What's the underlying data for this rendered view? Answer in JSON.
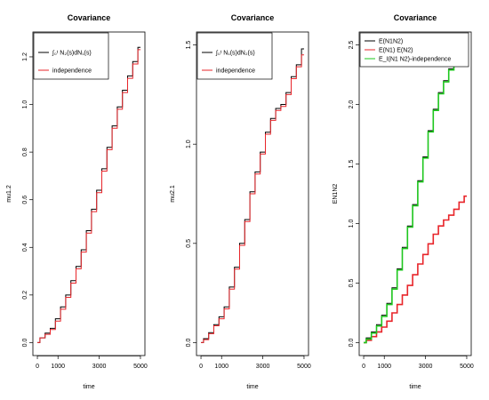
{
  "chart_data": [
    {
      "type": "line",
      "title": "Covariance",
      "xlabel": "time",
      "ylabel": "mu1.2",
      "xlim": [
        0,
        5000
      ],
      "ylim": [
        0,
        1.25
      ],
      "xticks": [
        0,
        1000,
        3000,
        5000
      ],
      "yticks": [
        0.0,
        0.2,
        0.4,
        0.6,
        0.8,
        1.0,
        1.2
      ],
      "ytick_labels": [
        "0.0",
        "0.2",
        "0.4",
        "0.6",
        "0.8",
        "1.0",
        "1.2"
      ],
      "legend": "top-left",
      "series": [
        {
          "name": "∫₀ᵗ N₂(s)dN₁(s)",
          "color": "#000000",
          "x": [
            0,
            250,
            500,
            750,
            1000,
            1250,
            1500,
            1750,
            2000,
            2250,
            2500,
            2750,
            3000,
            3250,
            3500,
            3750,
            4000,
            4250,
            4500,
            4750,
            5000
          ],
          "y": [
            0.0,
            0.02,
            0.04,
            0.06,
            0.1,
            0.15,
            0.2,
            0.26,
            0.32,
            0.39,
            0.47,
            0.56,
            0.64,
            0.73,
            0.82,
            0.91,
            0.99,
            1.06,
            1.12,
            1.18,
            1.24
          ]
        },
        {
          "name": "independence",
          "color": "#e8252a",
          "x": [
            0,
            250,
            500,
            750,
            1000,
            1250,
            1500,
            1750,
            2000,
            2250,
            2500,
            2750,
            3000,
            3250,
            3500,
            3750,
            4000,
            4250,
            4500,
            4750,
            5000
          ],
          "y": [
            0.0,
            0.02,
            0.035,
            0.055,
            0.09,
            0.14,
            0.19,
            0.25,
            0.31,
            0.38,
            0.46,
            0.55,
            0.63,
            0.72,
            0.81,
            0.9,
            0.98,
            1.05,
            1.11,
            1.17,
            1.23
          ]
        }
      ]
    },
    {
      "type": "line",
      "title": "Covariance",
      "xlabel": "time",
      "ylabel": "mu2.1",
      "xlim": [
        0,
        5000
      ],
      "ylim": [
        0,
        1.5
      ],
      "xticks": [
        0,
        1000,
        3000,
        5000
      ],
      "yticks": [
        0.0,
        0.5,
        1.0,
        1.5
      ],
      "ytick_labels": [
        "0.0",
        "0.5",
        "1.0",
        "1.5"
      ],
      "legend": "top-left",
      "series": [
        {
          "name": "∫₀ᵗ N₁(s)dN₂(s)",
          "color": "#000000",
          "x": [
            0,
            250,
            500,
            750,
            1000,
            1250,
            1500,
            1750,
            2000,
            2250,
            2500,
            2750,
            3000,
            3250,
            3500,
            3750,
            4000,
            4250,
            4500,
            4750,
            5000
          ],
          "y": [
            0.0,
            0.02,
            0.05,
            0.09,
            0.13,
            0.18,
            0.28,
            0.38,
            0.5,
            0.62,
            0.76,
            0.86,
            0.96,
            1.06,
            1.13,
            1.18,
            1.2,
            1.26,
            1.34,
            1.4,
            1.48
          ]
        },
        {
          "name": "independence",
          "color": "#e8252a",
          "x": [
            0,
            250,
            500,
            750,
            1000,
            1250,
            1500,
            1750,
            2000,
            2250,
            2500,
            2750,
            3000,
            3250,
            3500,
            3750,
            4000,
            4250,
            4500,
            4750,
            5000
          ],
          "y": [
            0.0,
            0.015,
            0.045,
            0.085,
            0.12,
            0.17,
            0.27,
            0.37,
            0.49,
            0.61,
            0.75,
            0.85,
            0.95,
            1.05,
            1.12,
            1.17,
            1.19,
            1.25,
            1.33,
            1.39,
            1.45
          ]
        }
      ]
    },
    {
      "type": "line",
      "title": "Covariance",
      "xlabel": "time",
      "ylabel": "EN1N2",
      "xlim": [
        0,
        5000
      ],
      "ylim": [
        0,
        2.5
      ],
      "xticks": [
        0,
        1000,
        3000,
        5000
      ],
      "yticks": [
        0.0,
        0.5,
        1.0,
        1.5,
        2.0,
        2.5
      ],
      "ytick_labels": [
        "0.0",
        "0.5",
        "1.0",
        "1.5",
        "2.0",
        "2.5"
      ],
      "legend": "top-left",
      "series": [
        {
          "name": "E(N1N2)",
          "color": "#000000",
          "x": [
            0,
            250,
            500,
            750,
            1000,
            1250,
            1500,
            1750,
            2000,
            2250,
            2500,
            2750,
            3000,
            3250,
            3500,
            3750,
            4000,
            4250,
            4500,
            4750
          ],
          "y": [
            0.0,
            0.04,
            0.09,
            0.15,
            0.23,
            0.33,
            0.46,
            0.62,
            0.8,
            0.98,
            1.16,
            1.36,
            1.56,
            1.78,
            1.96,
            2.1,
            2.2,
            2.3,
            2.42,
            2.53
          ]
        },
        {
          "name": "E(N1) E(N2)",
          "color": "#e8252a",
          "x": [
            0,
            250,
            500,
            750,
            1000,
            1250,
            1500,
            1750,
            2000,
            2250,
            2500,
            2750,
            3000,
            3250,
            3500,
            3750,
            4000,
            4250,
            4500,
            4750,
            5000
          ],
          "y": [
            0.0,
            0.02,
            0.05,
            0.09,
            0.13,
            0.18,
            0.25,
            0.32,
            0.4,
            0.48,
            0.57,
            0.66,
            0.74,
            0.83,
            0.91,
            0.98,
            1.03,
            1.07,
            1.12,
            1.18,
            1.23
          ]
        },
        {
          "name": "E_I(N1 N2)-independence",
          "color": "#1ec71e",
          "x": [
            0,
            250,
            500,
            750,
            1000,
            1250,
            1500,
            1750,
            2000,
            2250,
            2500,
            2750,
            3000,
            3250,
            3500,
            3750,
            4000,
            4250,
            4500,
            4750
          ],
          "y": [
            0.0,
            0.03,
            0.08,
            0.14,
            0.22,
            0.32,
            0.45,
            0.61,
            0.79,
            0.97,
            1.15,
            1.35,
            1.55,
            1.77,
            1.95,
            2.09,
            2.19,
            2.29,
            2.41,
            2.52
          ]
        }
      ]
    }
  ]
}
